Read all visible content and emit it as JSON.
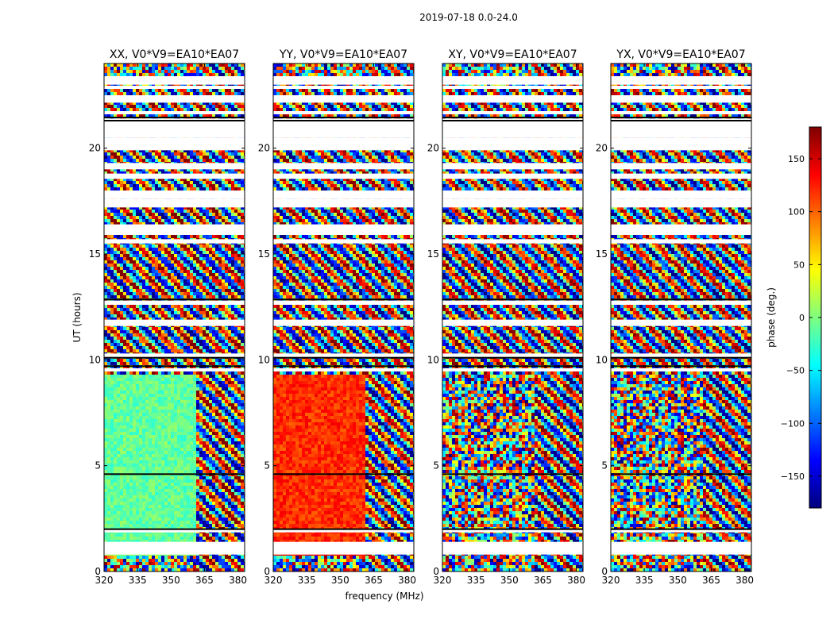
{
  "chart_data": {
    "type": "heatmap",
    "title": "2019-07-18 0.0-24.0",
    "xlabel": "frequency (MHz)",
    "ylabel": "UT (hours)",
    "xlim": [
      320,
      383
    ],
    "ylim": [
      0,
      24
    ],
    "xticks": [
      320,
      335,
      350,
      365,
      380
    ],
    "yticks": [
      0,
      5,
      10,
      15,
      20
    ],
    "colorbar": {
      "label": "phase (deg.)",
      "range": [
        -180,
        180
      ],
      "ticks": [
        -150,
        -100,
        -50,
        0,
        50,
        100,
        150
      ],
      "tick_labels": [
        "−150",
        "−100",
        "−50",
        "0",
        "50",
        "100",
        "150"
      ],
      "colormap": [
        "#00007f",
        "#0000ff",
        "#007fff",
        "#00ffff",
        "#7fff7f",
        "#ffff00",
        "#ff7f00",
        "#ff0000",
        "#7f0000"
      ]
    },
    "panels": [
      {
        "title": "XX, V0*V9=EA10*EA07",
        "coherent_phase_deg": -10,
        "early_block_phase_deg": 5
      },
      {
        "title": "YY, V0*V9=EA10*EA07",
        "coherent_phase_deg": 120,
        "early_block_phase_deg": 135
      },
      {
        "title": "XY, V0*V9=EA10*EA07",
        "coherent_phase_deg": null,
        "early_block_phase_deg": null
      },
      {
        "title": "YX, V0*V9=EA10*EA07",
        "coherent_phase_deg": null,
        "early_block_phase_deg": null
      }
    ],
    "flagged_ut_ranges_hours": [
      [
        0.8,
        1.4
      ],
      [
        1.85,
        2.0
      ],
      [
        9.45,
        9.6
      ],
      [
        10.1,
        10.3
      ],
      [
        11.6,
        11.9
      ],
      [
        12.6,
        12.8
      ],
      [
        15.5,
        15.7
      ],
      [
        15.9,
        16.4
      ],
      [
        17.2,
        17.6
      ],
      [
        17.6,
        18.0
      ],
      [
        18.55,
        18.8
      ],
      [
        19.0,
        19.3
      ],
      [
        19.9,
        20.5
      ],
      [
        20.5,
        21.4
      ],
      [
        21.6,
        21.75
      ],
      [
        22.15,
        22.5
      ],
      [
        22.8,
        22.95
      ],
      [
        23.0,
        23.4
      ]
    ],
    "flagged_channel_edge_mhz": 361
  }
}
